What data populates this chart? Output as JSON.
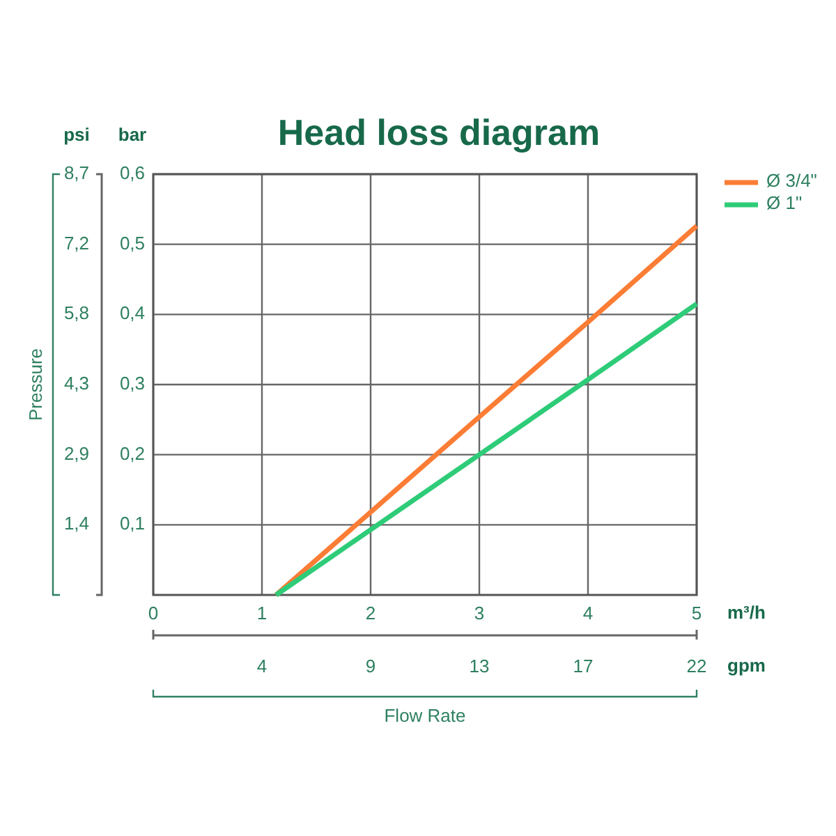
{
  "chart_data": {
    "type": "line",
    "title": "Head loss diagram",
    "xlabel": "m³/h",
    "x2label": "gpm",
    "ylabel": "bar",
    "y2label": "psi",
    "annotations": [
      "Pressure",
      "Flow Rate"
    ],
    "x": [
      1.13,
      2,
      3,
      4,
      5
    ],
    "series": [
      {
        "name": "Ø 3/4\"",
        "color": "#fb7d35",
        "values": [
          0,
          0.118,
          0.254,
          0.389,
          0.526
        ]
      },
      {
        "name": "Ø 1\"",
        "color": "#2ecc78",
        "values": [
          0,
          0.093,
          0.2,
          0.307,
          0.415
        ]
      }
    ],
    "xlim": [
      0,
      5
    ],
    "xticks": [
      0,
      1,
      2,
      3,
      4,
      5
    ],
    "x2lim": [
      0,
      22
    ],
    "x2ticks": [
      {
        "value": 4.4,
        "label": "4"
      },
      {
        "value": 8.8,
        "label": "9"
      },
      {
        "value": 13.2,
        "label": "13"
      },
      {
        "value": 17.4,
        "label": "17"
      },
      {
        "value": 22,
        "label": "22"
      }
    ],
    "ylim": [
      0,
      0.6
    ],
    "yticks": [
      {
        "value": 0.1,
        "label": "0,1"
      },
      {
        "value": 0.2,
        "label": "0,2"
      },
      {
        "value": 0.3,
        "label": "0,3"
      },
      {
        "value": 0.4,
        "label": "0,4"
      },
      {
        "value": 0.5,
        "label": "0,5"
      },
      {
        "value": 0.6,
        "label": "0,6"
      }
    ],
    "y2lim": [
      0,
      8.7
    ],
    "y2ticks": [
      {
        "value": 1.45,
        "label": "1,4"
      },
      {
        "value": 2.9,
        "label": "2,9"
      },
      {
        "value": 4.35,
        "label": "4,3"
      },
      {
        "value": 5.8,
        "label": "5,8"
      },
      {
        "value": 7.25,
        "label": "7,2"
      },
      {
        "value": 8.7,
        "label": "8,7"
      }
    ],
    "grid": true,
    "legend": "top right"
  }
}
